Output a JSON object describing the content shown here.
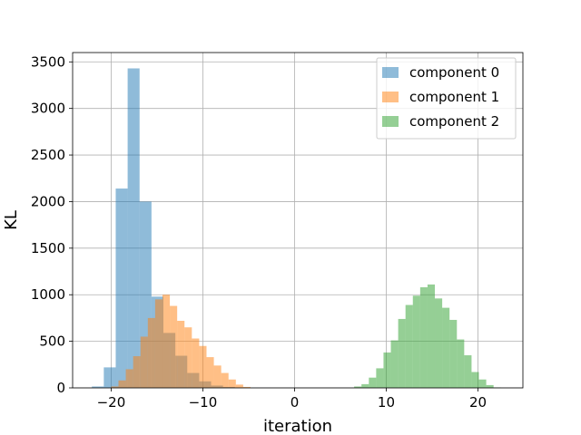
{
  "chart_data": {
    "type": "histogram",
    "xlabel": "iteration",
    "ylabel": "KL",
    "xlim": [
      -24.2,
      24.9
    ],
    "ylim": [
      0,
      3600
    ],
    "xticks": [
      -20,
      -10,
      0,
      10,
      20
    ],
    "xtick_labels": [
      "−20",
      "−10",
      "0",
      "10",
      "20"
    ],
    "yticks": [
      0,
      500,
      1000,
      1500,
      2000,
      2500,
      3000,
      3500
    ],
    "ytick_labels": [
      "0",
      "500",
      "1000",
      "1500",
      "2000",
      "2500",
      "3000",
      "3500"
    ],
    "grid": true,
    "legend_position": "top-right",
    "series": [
      {
        "name": "component 0",
        "color": "#1f77b4",
        "alpha": 0.5,
        "bin_edges": [
          -22.1,
          -20.8,
          -19.5,
          -18.2,
          -16.9,
          -15.6,
          -14.3,
          -13.0,
          -11.7,
          -10.4,
          -9.1,
          -7.8,
          -6.5,
          -5.2,
          -3.9,
          -2.6
        ],
        "counts": [
          15,
          220,
          2140,
          3430,
          2000,
          980,
          590,
          345,
          160,
          70,
          25,
          10,
          5,
          2,
          1
        ]
      },
      {
        "name": "component 1",
        "color": "#ff7f0e",
        "alpha": 0.5,
        "bin_edges": [
          -20.0,
          -19.2,
          -18.4,
          -17.6,
          -16.8,
          -16.0,
          -15.2,
          -14.4,
          -13.6,
          -12.8,
          -12.0,
          -11.2,
          -10.4,
          -9.6,
          -8.8,
          -8.0,
          -7.2,
          -6.4,
          -5.6,
          -4.8
        ],
        "counts": [
          15,
          80,
          200,
          340,
          550,
          750,
          950,
          1000,
          880,
          720,
          650,
          530,
          450,
          330,
          240,
          160,
          90,
          35,
          10
        ]
      },
      {
        "name": "component 2",
        "color": "#2ca02c",
        "alpha": 0.5,
        "bin_edges": [
          6.5,
          7.3,
          8.1,
          8.9,
          9.7,
          10.5,
          11.3,
          12.1,
          12.9,
          13.7,
          14.5,
          15.3,
          16.1,
          16.9,
          17.7,
          18.5,
          19.3,
          20.1,
          20.9,
          21.7,
          22.5
        ],
        "counts": [
          15,
          40,
          110,
          210,
          380,
          510,
          740,
          890,
          990,
          1080,
          1110,
          960,
          860,
          730,
          520,
          350,
          170,
          90,
          30,
          5
        ]
      }
    ]
  }
}
